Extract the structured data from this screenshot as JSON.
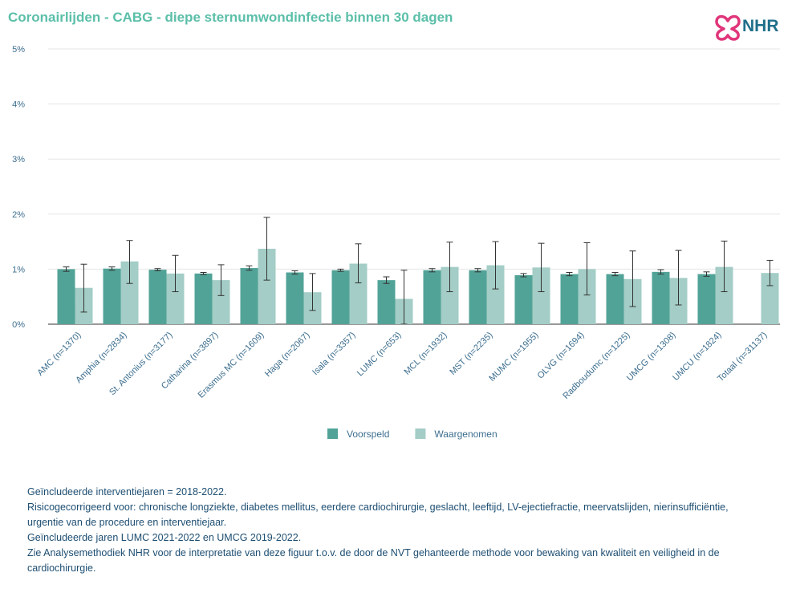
{
  "title": "Coronairlijden - CABG - diepe sternumwondinfectie binnen 30 dagen",
  "logo": {
    "text": "NHR",
    "heart_color": "#e0357a",
    "text_color": "#1f6f8b"
  },
  "chart_data": {
    "type": "bar",
    "ylim": [
      0,
      5
    ],
    "yticks": [
      "0%",
      "1%",
      "2%",
      "3%",
      "4%",
      "5%"
    ],
    "grid": true,
    "legend_position": "bottom",
    "categories": [
      "AMC (n=1370)",
      "Amphia (n=2834)",
      "St. Antonius (n=3177)",
      "Catharina (n=3897)",
      "Erasmus MC (n=1609)",
      "Haga (n=2067)",
      "Isala (n=3357)",
      "LUMC (n=653)",
      "MCL (n=1932)",
      "MST (n=2235)",
      "MUMC (n=1955)",
      "OLVG (n=1694)",
      "Radboudumc (n=1225)",
      "UMCG (n=1308)",
      "UMCU (n=1824)",
      "Totaal (n=31137)"
    ],
    "series": [
      {
        "name": "Voorspeld",
        "color": "#52a397",
        "values": [
          1.0,
          1.01,
          0.99,
          0.92,
          1.02,
          0.94,
          0.98,
          0.8,
          0.98,
          0.98,
          0.89,
          0.91,
          0.91,
          0.95,
          0.91,
          null
        ],
        "err_low": [
          0.96,
          0.98,
          0.97,
          0.9,
          0.98,
          0.91,
          0.96,
          0.74,
          0.95,
          0.95,
          0.86,
          0.88,
          0.88,
          0.91,
          0.87,
          null
        ],
        "err_high": [
          1.04,
          1.04,
          1.01,
          0.94,
          1.06,
          0.97,
          1.0,
          0.86,
          1.01,
          1.01,
          0.92,
          0.94,
          0.94,
          0.99,
          0.95,
          null
        ]
      },
      {
        "name": "Waargenomen",
        "color": "#a3cdc6",
        "values": [
          0.66,
          1.14,
          0.92,
          0.8,
          1.37,
          0.58,
          1.1,
          0.46,
          1.04,
          1.07,
          1.03,
          1.0,
          0.82,
          0.84,
          1.04,
          0.93
        ],
        "err_low": [
          0.22,
          0.74,
          0.59,
          0.52,
          0.8,
          0.25,
          0.75,
          0.0,
          0.59,
          0.64,
          0.59,
          0.53,
          0.32,
          0.35,
          0.59,
          0.7
        ],
        "err_high": [
          1.09,
          1.52,
          1.25,
          1.08,
          1.94,
          0.92,
          1.46,
          0.98,
          1.49,
          1.5,
          1.47,
          1.48,
          1.33,
          1.34,
          1.51,
          1.16
        ]
      }
    ]
  },
  "notes": [
    "Geïncludeerde interventiejaren = 2018-2022.",
    "Risicogecorrigeerd voor: chronische longziekte, diabetes mellitus, eerdere cardiochirurgie, geslacht, leeftijd, LV-ejectiefractie, meervatslijden, nierinsufficiëntie, urgentie van de procedure en interventiejaar.",
    "Geïncludeerde jaren LUMC 2021-2022 en UMCG 2019-2022.",
    "Zie Analysemethodiek NHR voor de interpretatie van deze figuur t.o.v. de door de NVT gehanteerde methode voor bewaking van kwaliteit en veiligheid in de cardiochirurgie."
  ]
}
